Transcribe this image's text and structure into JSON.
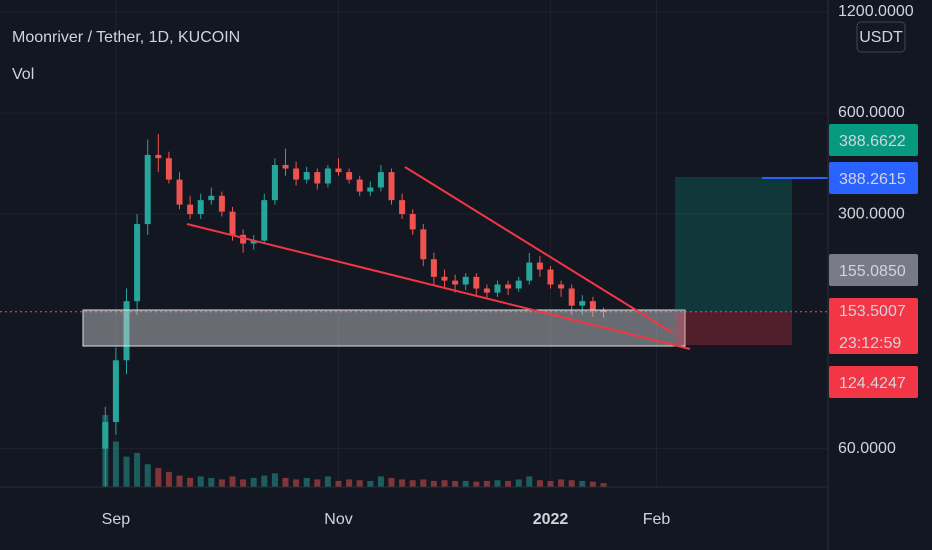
{
  "chart_data": {
    "type": "candlestick",
    "title": "Moonriver / Tether, 1D, KUCOIN",
    "subtitle": "Vol",
    "currency_button": "USDT",
    "log_scale": true,
    "grid": true,
    "up_color": "#26a69a",
    "down_color": "#ef5350",
    "categories": [
      null,
      "Sep",
      null,
      null,
      null,
      null,
      null,
      null,
      null,
      null,
      null,
      null,
      null,
      null,
      null,
      null,
      null,
      null,
      null,
      null,
      null,
      null,
      "Nov",
      null,
      null,
      null,
      null,
      null,
      null,
      null,
      null,
      null,
      null,
      null,
      null,
      null,
      null,
      null,
      null,
      null,
      null,
      null,
      "2022",
      null,
      null,
      null,
      null,
      null,
      null,
      null,
      null,
      null,
      "Feb",
      null,
      null,
      null,
      null,
      null,
      null,
      null,
      null,
      null,
      null,
      null,
      null,
      null,
      null,
      null
    ],
    "open": [
      60,
      72,
      110,
      165,
      280,
      450,
      440,
      380,
      320,
      300,
      330,
      340,
      305,
      260,
      245,
      250,
      330,
      420,
      410,
      380,
      400,
      370,
      410,
      400,
      380,
      350,
      360,
      400,
      330,
      300,
      270,
      220,
      195,
      190,
      185,
      195,
      180,
      175,
      185,
      180,
      190,
      215,
      205,
      185,
      180,
      160,
      165,
      155,
      null,
      null,
      null,
      null,
      null,
      null,
      null,
      null,
      null,
      null,
      null,
      null,
      null,
      null,
      null,
      null,
      null,
      null,
      null,
      null
    ],
    "high": [
      80,
      120,
      180,
      300,
      500,
      520,
      460,
      400,
      340,
      345,
      360,
      350,
      315,
      270,
      260,
      345,
      440,
      470,
      430,
      415,
      410,
      420,
      440,
      410,
      390,
      375,
      420,
      410,
      345,
      310,
      280,
      230,
      205,
      198,
      200,
      200,
      185,
      190,
      190,
      195,
      230,
      225,
      210,
      190,
      185,
      172,
      170,
      158,
      null,
      null,
      null,
      null,
      null,
      null,
      null,
      null,
      null,
      null,
      null,
      null,
      null,
      null,
      null,
      null,
      null,
      null,
      null,
      null
    ],
    "low": [
      46,
      66,
      100,
      150,
      260,
      400,
      370,
      310,
      290,
      290,
      320,
      295,
      250,
      230,
      235,
      245,
      320,
      390,
      365,
      370,
      355,
      360,
      390,
      370,
      340,
      340,
      350,
      320,
      290,
      260,
      210,
      185,
      180,
      175,
      178,
      172,
      168,
      170,
      172,
      176,
      185,
      195,
      180,
      170,
      150,
      150,
      148,
      147,
      null,
      null,
      null,
      null,
      null,
      null,
      null,
      null,
      null,
      null,
      null,
      null,
      null,
      null,
      null,
      null,
      null,
      null,
      null,
      null
    ],
    "close": [
      72,
      110,
      165,
      280,
      450,
      440,
      380,
      320,
      300,
      330,
      340,
      305,
      260,
      245,
      250,
      330,
      420,
      410,
      380,
      400,
      370,
      410,
      400,
      380,
      350,
      360,
      400,
      330,
      300,
      270,
      220,
      195,
      190,
      185,
      195,
      180,
      175,
      185,
      180,
      190,
      215,
      205,
      185,
      180,
      160,
      165,
      155,
      153.5,
      null,
      null,
      null,
      null,
      null,
      null,
      null,
      null,
      null,
      null,
      null,
      null,
      null,
      null,
      null,
      null,
      null,
      null,
      null,
      null
    ],
    "volume": [
      95,
      60,
      40,
      45,
      30,
      25,
      20,
      15,
      12,
      14,
      12,
      10,
      14,
      10,
      12,
      15,
      18,
      12,
      10,
      12,
      10,
      14,
      8,
      10,
      9,
      8,
      14,
      12,
      10,
      9,
      10,
      8,
      9,
      8,
      8,
      7,
      8,
      9,
      8,
      10,
      14,
      9,
      8,
      10,
      9,
      8,
      7,
      5,
      null,
      null,
      null,
      null,
      null,
      null,
      null,
      null,
      null,
      null,
      null,
      null,
      null,
      null,
      null,
      null,
      null,
      null,
      null,
      null
    ],
    "ylim": [
      46.1,
      1303
    ],
    "yticks": [
      {
        "value": 1200,
        "label": "1200.0000"
      },
      {
        "value": 600,
        "label": "600.0000"
      },
      {
        "value": 300,
        "label": "300.0000"
      },
      {
        "value": 60,
        "label": "60.0000"
      }
    ],
    "price_labels": [
      {
        "text": "388.6622",
        "color": "#089981"
      },
      {
        "text": "388.2615",
        "color": "#2962ff"
      },
      {
        "text": "155.0850",
        "color": "#787b86"
      },
      {
        "text": "153.5007",
        "color": "#f23645"
      },
      {
        "text": "23:12:59",
        "color": "#f23645"
      },
      {
        "text": "124.4247",
        "color": "#f23645"
      }
    ]
  }
}
